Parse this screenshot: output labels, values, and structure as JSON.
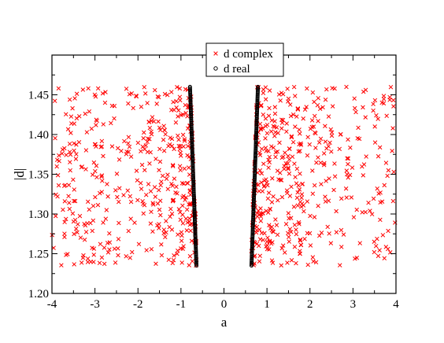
{
  "chart_data": {
    "type": "scatter",
    "title": "",
    "xlabel": "a",
    "ylabel": "|d|",
    "xlim": [
      -4,
      4
    ],
    "ylim": [
      1.2,
      1.5
    ],
    "xticks": [
      -4,
      -3,
      -2,
      -1,
      0,
      1,
      2,
      3,
      4
    ],
    "xtick_labels": [
      "-4",
      "-3",
      "-2",
      "-1",
      "0",
      "1",
      "2",
      "3",
      "4"
    ],
    "yticks": [
      1.2,
      1.25,
      1.3,
      1.35,
      1.4,
      1.45
    ],
    "ytick_labels": [
      "1.20",
      "1.25",
      "1.30",
      "1.35",
      "1.40",
      "1.45"
    ],
    "grid": false,
    "legend_position": "top-center",
    "series": [
      {
        "name": "d complex",
        "marker": "x",
        "color": "#ff0000",
        "distribution": {
          "bands": [
            [
              -4.0,
              -0.62
            ],
            [
              0.68,
              4.0
            ]
          ],
          "y_range": [
            1.235,
            1.46
          ],
          "count": 900
        }
      },
      {
        "name": "d real",
        "marker": "o",
        "color": "#000000",
        "x_at_y": {
          "negative_branch": [
            [
              1.235,
              -0.64
            ],
            [
              1.46,
              -0.79
            ]
          ],
          "positive_branch": [
            [
              1.235,
              0.64
            ],
            [
              1.46,
              0.79
            ]
          ]
        },
        "y_range": [
          1.235,
          1.46
        ],
        "count_per_branch": 140
      }
    ]
  }
}
